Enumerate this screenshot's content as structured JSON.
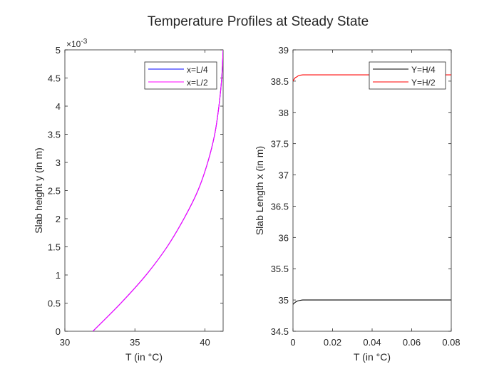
{
  "figure": {
    "title": "Temperature Profiles at Steady State"
  },
  "chart_data": [
    {
      "type": "line",
      "xlabel": "T (in °C)",
      "ylabel": "Slab height y (in m)",
      "xlim": [
        30,
        41.3
      ],
      "ylim": [
        0,
        0.005
      ],
      "x_ticks": [
        30,
        35,
        40
      ],
      "x_tick_labels": [
        "30",
        "35",
        "40"
      ],
      "y_ticks": [
        0,
        0.0005,
        0.001,
        0.0015,
        0.002,
        0.0025,
        0.003,
        0.0035,
        0.004,
        0.0045,
        0.005
      ],
      "y_tick_labels": [
        "0",
        "0.5",
        "1",
        "1.5",
        "2",
        "2.5",
        "3",
        "3.5",
        "4",
        "4.5",
        "5"
      ],
      "y_exponent_label": "×10",
      "y_exponent_power": "-3",
      "grid": false,
      "legend_position": "top-right",
      "series": [
        {
          "name": "x=L/4",
          "color": "#0000ff",
          "x": [
            32.0,
            34.0,
            35.8,
            37.3,
            38.5,
            39.5,
            40.2,
            40.7,
            41.0,
            41.2,
            41.3
          ],
          "y": [
            0.0,
            0.0005,
            0.001,
            0.0015,
            0.002,
            0.0025,
            0.003,
            0.0035,
            0.004,
            0.0045,
            0.005
          ]
        },
        {
          "name": "x=L/2",
          "color": "#ff00ff",
          "x": [
            32.0,
            34.0,
            35.8,
            37.3,
            38.5,
            39.5,
            40.2,
            40.7,
            41.0,
            41.2,
            41.3
          ],
          "y": [
            0.0,
            0.0005,
            0.001,
            0.0015,
            0.002,
            0.0025,
            0.003,
            0.0035,
            0.004,
            0.0045,
            0.005
          ]
        }
      ]
    },
    {
      "type": "line",
      "xlabel": "T (in °C)",
      "ylabel": "Slab Length x (in m)",
      "xlim": [
        0,
        0.08
      ],
      "ylim": [
        34.5,
        39
      ],
      "x_ticks": [
        0,
        0.02,
        0.04,
        0.06,
        0.08
      ],
      "x_tick_labels": [
        "0",
        "0.02",
        "0.04",
        "0.06",
        "0.08"
      ],
      "y_ticks": [
        34.5,
        35,
        35.5,
        36,
        36.5,
        37,
        37.5,
        38,
        38.5,
        39
      ],
      "y_tick_labels": [
        "34.5",
        "35",
        "35.5",
        "36",
        "36.5",
        "37",
        "37.5",
        "38",
        "38.5",
        "39"
      ],
      "grid": false,
      "legend_position": "top-right",
      "series": [
        {
          "name": "Y=H/4",
          "color": "#000000",
          "x": [
            0,
            0.001,
            0.002,
            0.003,
            0.005,
            0.008,
            0.012,
            0.02,
            0.04,
            0.06,
            0.08
          ],
          "y": [
            34.93,
            34.96,
            34.98,
            34.99,
            35.0,
            35.0,
            35.0,
            35.0,
            35.0,
            35.0,
            35.0
          ]
        },
        {
          "name": "Y=H/2",
          "color": "#ff0000",
          "x": [
            0,
            0.001,
            0.002,
            0.003,
            0.005,
            0.008,
            0.012,
            0.02,
            0.04,
            0.06,
            0.08
          ],
          "y": [
            38.5,
            38.55,
            38.57,
            38.59,
            38.6,
            38.6,
            38.6,
            38.6,
            38.6,
            38.6,
            38.6
          ]
        }
      ]
    }
  ]
}
